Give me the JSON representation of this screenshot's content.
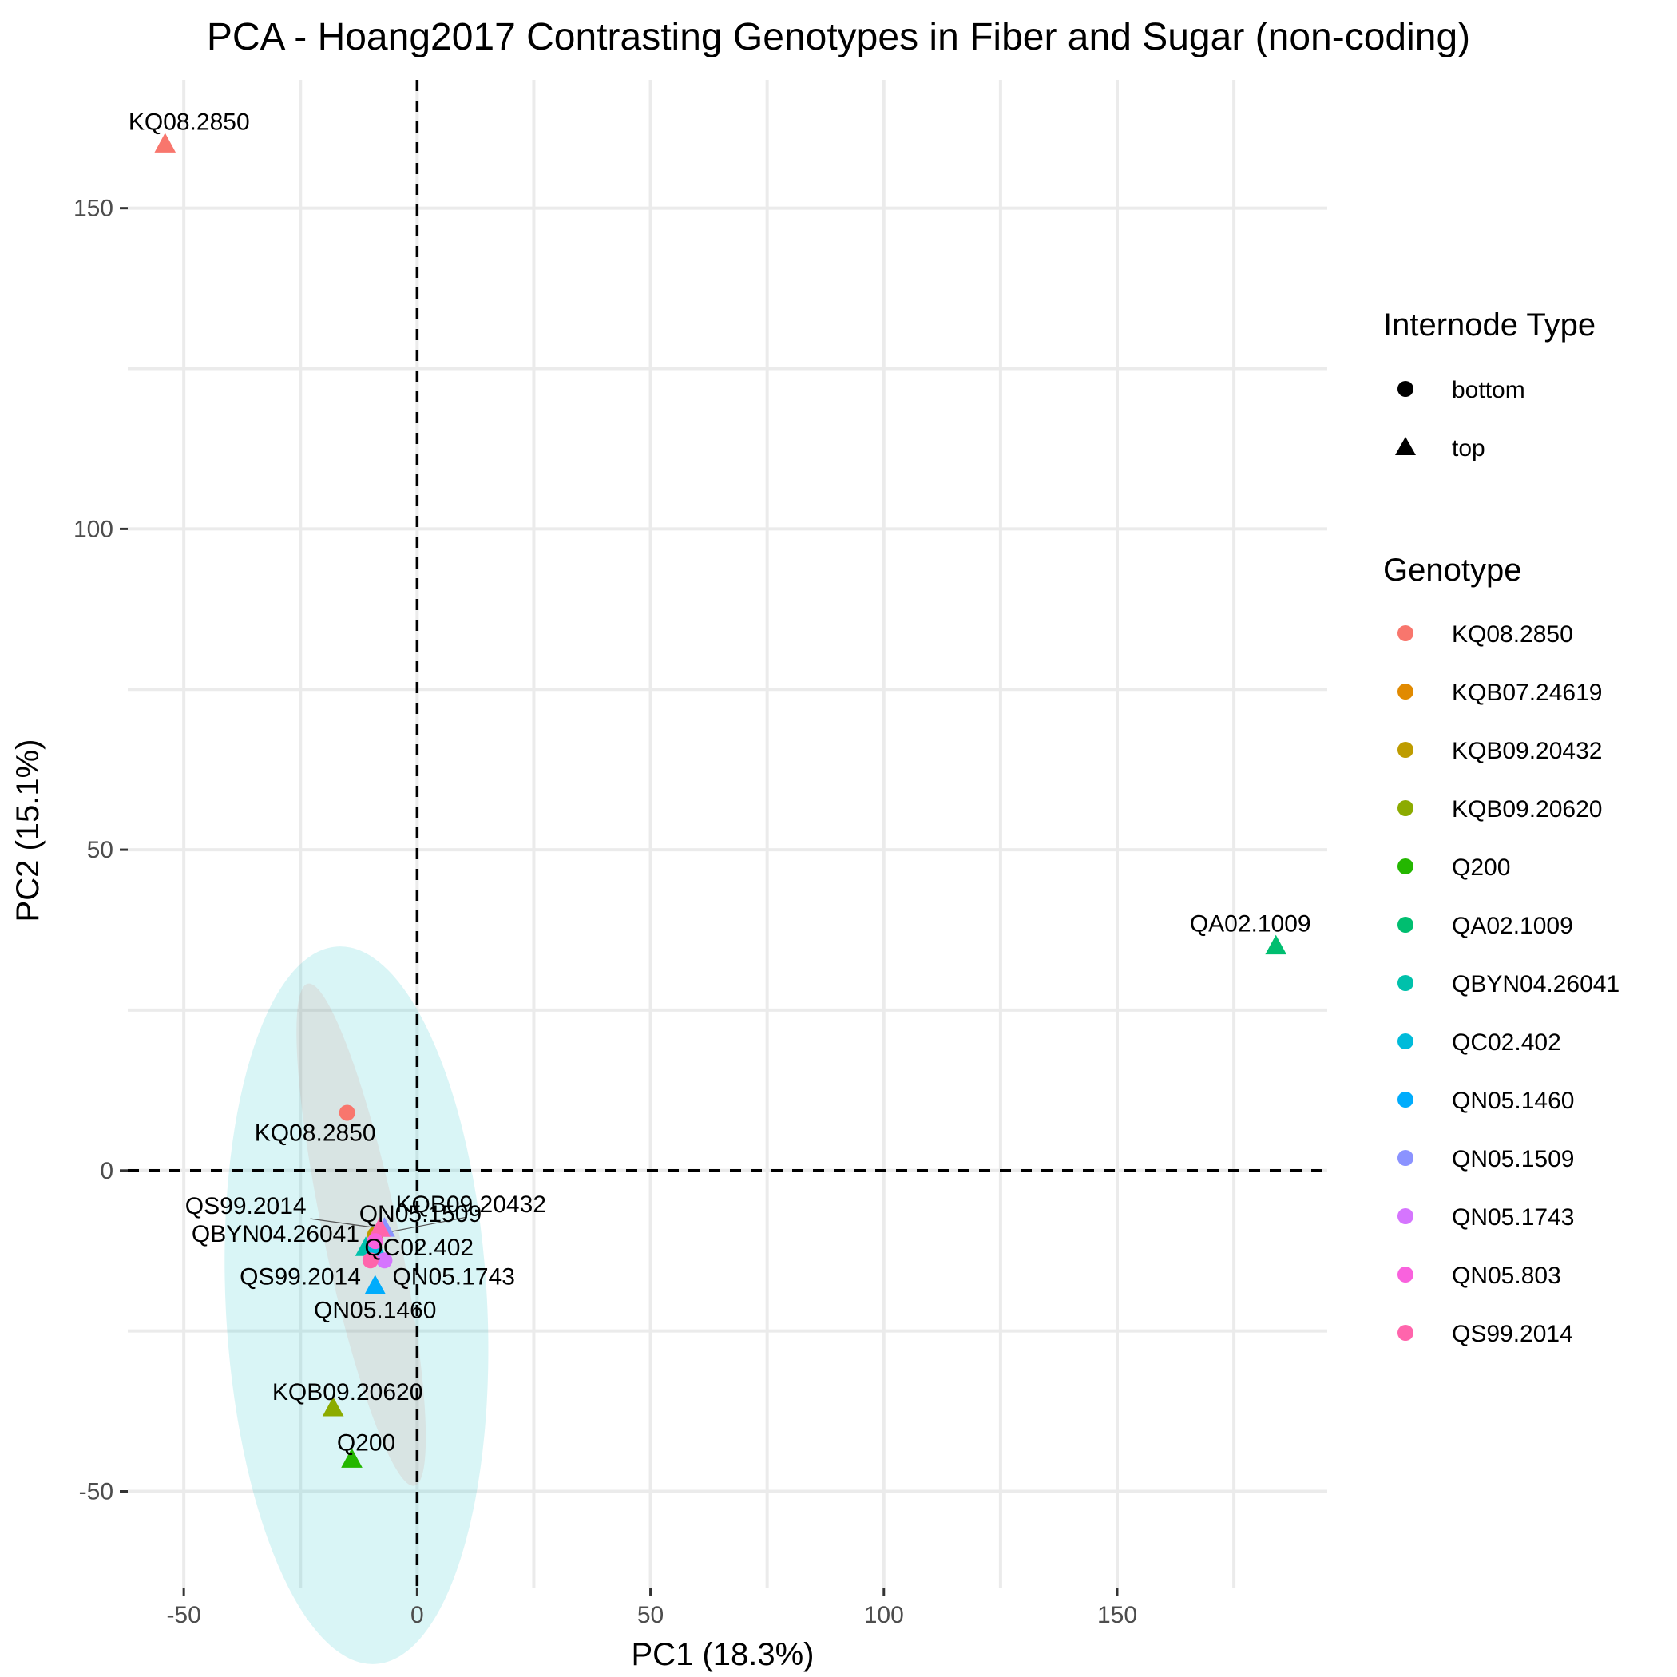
{
  "chart_data": {
    "type": "scatter",
    "title": "PCA - Hoang2017 Contrasting Genotypes in Fiber and Sugar (non-coding)",
    "xlabel": "PC1 (18.3%)",
    "ylabel": "PC2 (15.1%)",
    "xlim": [
      -62,
      195
    ],
    "ylim": [
      -65,
      170
    ],
    "x_ticks": [
      -50,
      0,
      50,
      100,
      150
    ],
    "y_ticks": [
      -50,
      0,
      50,
      100,
      150
    ],
    "x_tick_labels": [
      "-50",
      "0",
      "50",
      "100",
      "150"
    ],
    "y_tick_labels": [
      "-50",
      "0",
      "50",
      "100",
      "150"
    ],
    "grid": true,
    "reference_lines": {
      "x": 0,
      "y": 0,
      "style": "dashed"
    },
    "legend_position": "right",
    "legend": {
      "shape_title": "Internode Type",
      "shape_items": [
        {
          "label": "bottom",
          "shape": "circle"
        },
        {
          "label": "top",
          "shape": "triangle"
        }
      ],
      "color_title": "Genotype",
      "color_items": [
        {
          "label": "KQ08.2850",
          "color": "#F8766D"
        },
        {
          "label": "KQB07.24619",
          "color": "#E18A00"
        },
        {
          "label": "KQB09.20432",
          "color": "#BE9C00"
        },
        {
          "label": "KQB09.20620",
          "color": "#8CAB00"
        },
        {
          "label": "Q200",
          "color": "#24B700"
        },
        {
          "label": "QA02.1009",
          "color": "#00BE70"
        },
        {
          "label": "QBYN04.26041",
          "color": "#00C1AB"
        },
        {
          "label": "QC02.402",
          "color": "#00BBDA"
        },
        {
          "label": "QN05.1460",
          "color": "#00ACFC"
        },
        {
          "label": "QN05.1509",
          "color": "#8B93FF"
        },
        {
          "label": "QN05.1743",
          "color": "#D575FE"
        },
        {
          "label": "QN05.803",
          "color": "#F962DD"
        },
        {
          "label": "QS99.2014",
          "color": "#FF65AC"
        }
      ]
    },
    "ellipses": [
      {
        "group": "bottom",
        "color": "#F8766D",
        "cx": -12,
        "cy": -10,
        "rx": 8,
        "ry": 40,
        "angle_deg": -12
      },
      {
        "group": "top",
        "color": "#00BFC4",
        "cx": -13,
        "cy": -21,
        "rx": 28,
        "ry": 56,
        "angle_deg": -3
      }
    ],
    "points": [
      {
        "genotype": "KQ08.2850",
        "type": "top",
        "x": -54,
        "y": 160,
        "label": "KQ08.2850",
        "color": "#F8766D"
      },
      {
        "genotype": "QA02.1009",
        "type": "top",
        "x": 184,
        "y": 35,
        "label": "QA02.1009",
        "color": "#00BE70"
      },
      {
        "genotype": "KQ08.2850",
        "type": "bottom",
        "x": -15,
        "y": 9,
        "label": "KQ08.2850",
        "color": "#F8766D"
      },
      {
        "genotype": "KQB09.20432",
        "type": "bottom",
        "x": -9,
        "y": -10,
        "label": "KQB09.20432",
        "color": "#BE9C00"
      },
      {
        "genotype": "KQB07.24619",
        "type": "bottom",
        "x": -9,
        "y": -11,
        "label": "",
        "color": "#E18A00"
      },
      {
        "genotype": "QN05.1509",
        "type": "top",
        "x": -7,
        "y": -9,
        "label": "QN05.1509",
        "color": "#8B93FF"
      },
      {
        "genotype": "QN05.803",
        "type": "top",
        "x": -8,
        "y": -9,
        "label": "",
        "color": "#F962DD"
      },
      {
        "genotype": "QS99.2014",
        "type": "top",
        "x": -8,
        "y": -9,
        "label": "QS99.2014",
        "color": "#FF65AC"
      },
      {
        "genotype": "QBYN04.26041",
        "type": "top",
        "x": -11,
        "y": -12,
        "label": "QBYN04.26041",
        "color": "#00C1AB"
      },
      {
        "genotype": "QC02.402",
        "type": "top",
        "x": -9,
        "y": -12,
        "label": "QC02.402",
        "color": "#00BBDA"
      },
      {
        "genotype": "QN05.803",
        "type": "bottom",
        "x": -9,
        "y": -11,
        "label": "",
        "color": "#F962DD"
      },
      {
        "genotype": "QN05.1743",
        "type": "bottom",
        "x": -7,
        "y": -14,
        "label": "QN05.1743",
        "color": "#D575FE"
      },
      {
        "genotype": "QS99.2014",
        "type": "bottom",
        "x": -10,
        "y": -14,
        "label": "QS99.2014",
        "color": "#FF65AC"
      },
      {
        "genotype": "QN05.1460",
        "type": "top",
        "x": -9,
        "y": -18,
        "label": "QN05.1460",
        "color": "#00ACFC"
      },
      {
        "genotype": "KQB09.20620",
        "type": "top",
        "x": -18,
        "y": -37,
        "label": "KQB09.20620",
        "color": "#8CAB00"
      },
      {
        "genotype": "Q200",
        "type": "top",
        "x": -14,
        "y": -45,
        "label": "Q200",
        "color": "#24B700"
      }
    ]
  }
}
